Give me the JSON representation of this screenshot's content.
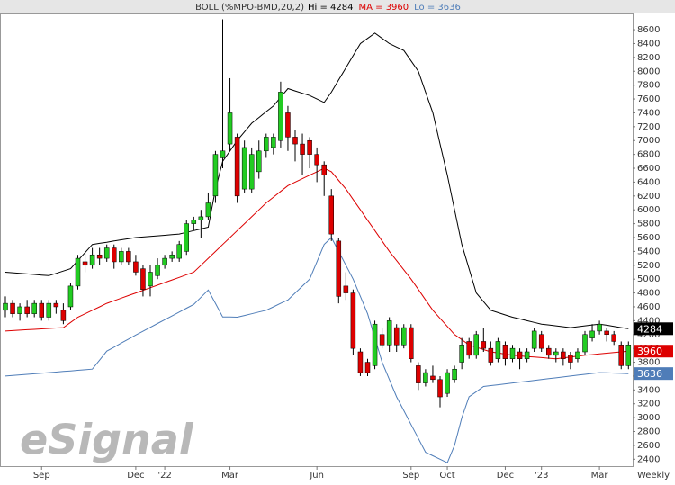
{
  "chart_data": {
    "type": "candlestick",
    "study": "BOLL (%MPO-BMD,20,2)",
    "interval": "Weekly",
    "watermark": "eSignal",
    "up_color": "#22cc22",
    "down_color": "#dd0000",
    "ylim": [
      2300,
      8770
    ],
    "yticks": [
      2400,
      2600,
      2800,
      3000,
      3200,
      3400,
      3600,
      3800,
      4000,
      4200,
      4400,
      4600,
      4800,
      5000,
      5200,
      5400,
      5600,
      5800,
      6000,
      6200,
      6400,
      6600,
      6800,
      7000,
      7200,
      7400,
      7600,
      7800,
      8000,
      8200,
      8400,
      8600
    ],
    "grid": false,
    "categories": [
      null,
      null,
      null,
      null,
      null,
      "Sep",
      null,
      null,
      null,
      null,
      null,
      null,
      null,
      null,
      null,
      null,
      null,
      null,
      "Dec",
      null,
      null,
      null,
      "'22",
      null,
      null,
      null,
      null,
      null,
      null,
      null,
      null,
      "Mar",
      null,
      null,
      null,
      null,
      null,
      null,
      null,
      null,
      null,
      null,
      null,
      "Jun",
      null,
      null,
      null,
      null,
      null,
      null,
      null,
      null,
      null,
      null,
      null,
      null,
      "Sep",
      null,
      null,
      null,
      null,
      "Oct",
      null,
      null,
      null,
      null,
      null,
      null,
      null,
      "Dec",
      null,
      null,
      null,
      null,
      "'23",
      null,
      null,
      null,
      null,
      null,
      null,
      null,
      "Mar",
      null,
      null,
      null,
      null
    ],
    "open": [
      4550,
      4650,
      4500,
      4600,
      4500,
      4650,
      4450,
      4650,
      4550,
      4600,
      4900,
      5250,
      5200,
      5350,
      5300,
      5450,
      5250,
      5400,
      5250,
      5150,
      4900,
      5050,
      5200,
      5300,
      5300,
      5400,
      5800,
      5850,
      5900,
      6200,
      6750,
      6950,
      7050,
      6300,
      6300,
      6550,
      6850,
      6900,
      7000,
      7400,
      7050,
      6950,
      7000,
      6800,
      6650,
      6200,
      5550,
      4900,
      4800,
      3950,
      3800,
      3750,
      4200,
      4050,
      4300,
      4050,
      4300,
      3750,
      3500,
      3600,
      3550,
      3350,
      3550,
      3800,
      4100,
      3900,
      4100,
      4000,
      3850,
      4050,
      3850,
      3950,
      3850,
      4000,
      4200,
      4000,
      3900,
      3950,
      3900,
      3850,
      3950,
      4150,
      4250,
      4250,
      4200,
      4050,
      3750
    ],
    "close": [
      4650,
      4500,
      4600,
      4500,
      4650,
      4450,
      4650,
      4600,
      4400,
      4900,
      5300,
      5200,
      5350,
      5300,
      5450,
      5250,
      5400,
      5250,
      5100,
      4850,
      5100,
      5200,
      5300,
      5350,
      5500,
      5800,
      5850,
      5900,
      6100,
      6800,
      6850,
      7400,
      6200,
      6900,
      6800,
      6850,
      7050,
      7050,
      7700,
      7050,
      6950,
      6800,
      6800,
      6650,
      6500,
      5650,
      4750,
      4800,
      4000,
      3650,
      3650,
      4350,
      4050,
      4400,
      4050,
      4300,
      3850,
      3500,
      3650,
      3550,
      3300,
      3650,
      3700,
      4050,
      3900,
      4200,
      4000,
      3800,
      4100,
      3850,
      4000,
      3850,
      3950,
      4250,
      4000,
      3900,
      3950,
      3850,
      3800,
      3950,
      4200,
      4250,
      4350,
      4200,
      4100,
      3750,
      4050
    ],
    "high": [
      4750,
      4700,
      4650,
      4700,
      4700,
      4700,
      4700,
      4700,
      4650,
      4950,
      5350,
      5400,
      5450,
      5450,
      5500,
      5500,
      5450,
      5450,
      5350,
      5200,
      5200,
      5300,
      5350,
      5400,
      5550,
      5850,
      5900,
      6000,
      6250,
      6850,
      8750,
      7900,
      7100,
      7000,
      6900,
      7000,
      7100,
      7100,
      7850,
      7500,
      7150,
      7100,
      7050,
      6900,
      6700,
      6300,
      5600,
      5100,
      4850,
      4000,
      3850,
      4400,
      4300,
      4450,
      4350,
      4350,
      4350,
      3800,
      3700,
      3750,
      3600,
      3700,
      3750,
      4150,
      4150,
      4250,
      4300,
      4100,
      4150,
      4100,
      4050,
      4000,
      4000,
      4300,
      4250,
      4050,
      4000,
      4000,
      3950,
      4000,
      4250,
      4350,
      4400,
      4300,
      4250,
      4100,
      4100
    ],
    "low": [
      4450,
      4450,
      4400,
      4450,
      4450,
      4400,
      4400,
      4500,
      4350,
      4550,
      4850,
      5100,
      5150,
      5200,
      5250,
      5150,
      5200,
      5200,
      5050,
      4750,
      4750,
      5000,
      5150,
      5250,
      5250,
      5350,
      5700,
      5600,
      5850,
      6100,
      6600,
      6850,
      6100,
      6250,
      6250,
      6450,
      6750,
      6800,
      6900,
      6850,
      6700,
      6500,
      6600,
      6400,
      6200,
      5550,
      4650,
      4700,
      3900,
      3600,
      3600,
      3700,
      4000,
      3950,
      3950,
      4000,
      3800,
      3400,
      3450,
      3500,
      3150,
      3300,
      3500,
      3700,
      3850,
      3850,
      3950,
      3750,
      3800,
      3750,
      3800,
      3700,
      3800,
      3950,
      3950,
      3850,
      3800,
      3750,
      3700,
      3800,
      3900,
      4100,
      4200,
      4100,
      4050,
      3700,
      3700
    ],
    "series": [
      {
        "name": "Hi",
        "legend": "Hi = 4284",
        "color": "#000000",
        "tag_text": "#ffffff",
        "values": [
          5100,
          5092,
          5083,
          5075,
          5067,
          5058,
          5050,
          5083,
          5117,
          5150,
          5267,
          5383,
          5500,
          5517,
          5533,
          5550,
          5567,
          5583,
          5600,
          5608,
          5617,
          5625,
          5633,
          5642,
          5650,
          5675,
          5700,
          5725,
          5750,
          6300,
          6700,
          6850,
          7000,
          7125,
          7250,
          7333,
          7417,
          7500,
          7625,
          7750,
          7717,
          7683,
          7650,
          7600,
          7550,
          7700,
          7875,
          8050,
          8225,
          8400,
          8475,
          8550,
          8475,
          8400,
          8350,
          8300,
          8150,
          8000,
          7700,
          7400,
          6950,
          6500,
          6000,
          5500,
          5150,
          4800,
          4675,
          4550,
          4517,
          4483,
          4450,
          4425,
          4400,
          4375,
          4350,
          4338,
          4325,
          4313,
          4300,
          4313,
          4325,
          4338,
          4350,
          4334,
          4317,
          4300,
          4284
        ]
      },
      {
        "name": "MA",
        "legend": "MA = 3960",
        "color": "#dd0000",
        "tag_text": "#ffffff",
        "values": [
          4250,
          4256,
          4263,
          4269,
          4275,
          4281,
          4288,
          4294,
          4300,
          4375,
          4450,
          4500,
          4550,
          4600,
          4650,
          4688,
          4725,
          4763,
          4800,
          4838,
          4875,
          4913,
          4950,
          4988,
          5025,
          5063,
          5100,
          5200,
          5300,
          5400,
          5500,
          5600,
          5700,
          5800,
          5900,
          6000,
          6100,
          6183,
          6267,
          6350,
          6400,
          6450,
          6500,
          6550,
          6600,
          6550,
          6425,
          6300,
          6150,
          6000,
          5850,
          5700,
          5550,
          5400,
          5267,
          5133,
          5000,
          4850,
          4700,
          4550,
          4433,
          4317,
          4200,
          4125,
          4050,
          4017,
          3983,
          3950,
          3933,
          3917,
          3900,
          3892,
          3883,
          3875,
          3867,
          3858,
          3850,
          3863,
          3875,
          3888,
          3900,
          3910,
          3920,
          3930,
          3940,
          3950,
          3960
        ]
      },
      {
        "name": "Lo",
        "legend": "Lo = 3636",
        "color": "#4f7db8",
        "tag_text": "#ffffff",
        "values": [
          3600,
          3608,
          3617,
          3625,
          3633,
          3642,
          3650,
          3658,
          3667,
          3675,
          3683,
          3692,
          3700,
          3830,
          3960,
          4018,
          4077,
          4135,
          4193,
          4248,
          4303,
          4359,
          4414,
          4469,
          4524,
          4580,
          4635,
          4739,
          4843,
          4648,
          4453,
          4453,
          4450,
          4475,
          4500,
          4525,
          4550,
          4600,
          4650,
          4700,
          4800,
          4900,
          5000,
          5250,
          5500,
          5600,
          5400,
          5200,
          5000,
          4750,
          4500,
          4150,
          3800,
          3550,
          3300,
          3100,
          2900,
          2700,
          2500,
          2450,
          2400,
          2350,
          2600,
          3000,
          3300,
          3375,
          3450,
          3463,
          3475,
          3488,
          3500,
          3513,
          3525,
          3538,
          3550,
          3563,
          3575,
          3588,
          3600,
          3613,
          3625,
          3638,
          3650,
          3647,
          3643,
          3640,
          3636
        ]
      }
    ]
  }
}
